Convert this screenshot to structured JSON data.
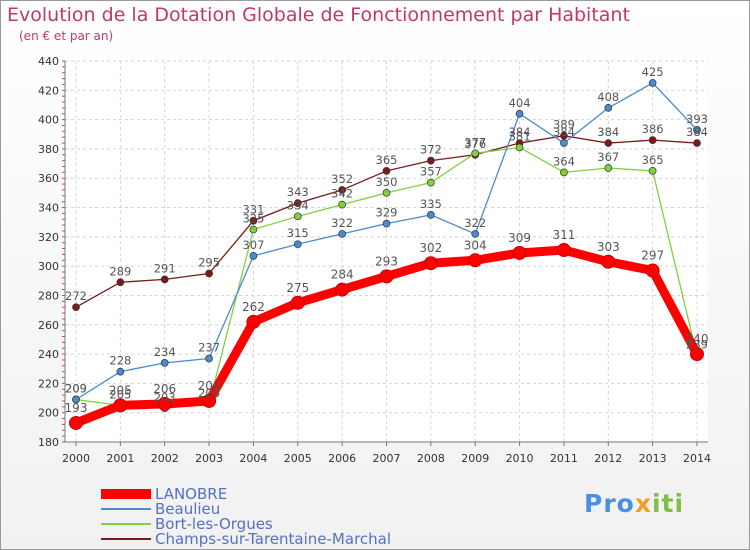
{
  "title": "Evolution de la Dotation Globale de Fonctionnement par Habitant",
  "subtitle": "(en € et par an)",
  "logo": {
    "p1": "Pro",
    "p2": "x",
    "p3": "iti"
  },
  "chart_data": {
    "type": "line",
    "title": "Evolution de la Dotation Globale de Fonctionnement par Habitant",
    "ylabel": "(en € et par an)",
    "x": [
      2000,
      2001,
      2002,
      2003,
      2004,
      2005,
      2006,
      2007,
      2008,
      2009,
      2010,
      2011,
      2012,
      2013,
      2014
    ],
    "ylim": [
      180,
      440
    ],
    "yticks": [
      180,
      200,
      220,
      240,
      260,
      280,
      300,
      320,
      340,
      360,
      380,
      400,
      420,
      440
    ],
    "series": [
      {
        "name": "Champs-sur-Tarentaine-Marchal",
        "color": "#7a1a1a",
        "values": [
          272,
          289,
          291,
          295,
          331,
          343,
          352,
          365,
          372,
          376,
          384,
          389,
          384,
          386,
          384
        ]
      },
      {
        "name": "Bort-les-Orgues",
        "color": "#80d040",
        "values": [
          209,
          205,
          203,
          206,
          325,
          334,
          342,
          350,
          357,
          377,
          381,
          364,
          367,
          365,
          239
        ]
      },
      {
        "name": "Beaulieu",
        "color": "#4a8ad0",
        "values": [
          209,
          228,
          234,
          237,
          307,
          315,
          322,
          329,
          335,
          322,
          404,
          384,
          408,
          425,
          393
        ]
      },
      {
        "name": "LANOBRE",
        "color": "#ff0000",
        "values": [
          193,
          205,
          206,
          208,
          262,
          275,
          284,
          293,
          302,
          304,
          309,
          311,
          303,
          297,
          240
        ]
      }
    ],
    "legend_order": [
      "LANOBRE",
      "Beaulieu",
      "Bort-les-Orgues",
      "Champs-sur-Tarentaine-Marchal"
    ]
  }
}
